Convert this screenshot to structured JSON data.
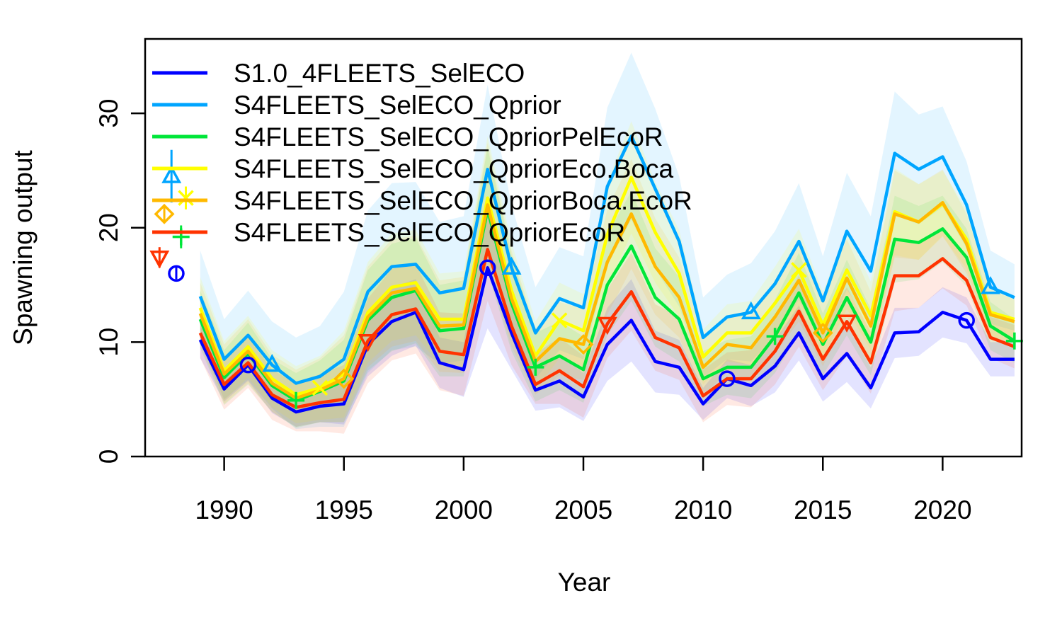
{
  "chart_data": {
    "type": "line",
    "xlabel": "Year",
    "ylabel": "Spawning output",
    "xlim": [
      1986.7,
      2023.3
    ],
    "ylim": [
      0,
      36.5
    ],
    "x_ticks": [
      1990,
      1995,
      2000,
      2005,
      2010,
      2015,
      2020
    ],
    "y_ticks": [
      0,
      10,
      20,
      30
    ],
    "grid": false,
    "legend_position": "top-left",
    "x": [
      1989,
      1990,
      1991,
      1992,
      1993,
      1994,
      1995,
      1996,
      1997,
      1998,
      1999,
      2000,
      2001,
      2002,
      2003,
      2004,
      2005,
      2006,
      2007,
      2008,
      2009,
      2010,
      2011,
      2012,
      2013,
      2014,
      2015,
      2016,
      2017,
      2018,
      2019,
      2020,
      2021,
      2022,
      2023
    ],
    "series": [
      {
        "name": "S1.0_4FLEETS_SelECO",
        "color": "#0000FF",
        "marker": "circle",
        "virgin": {
          "x": 1988.0,
          "y": 16.0,
          "lo": 15.5,
          "hi": 16.6
        },
        "values": [
          10.2,
          5.9,
          8.0,
          5.1,
          3.9,
          4.4,
          4.6,
          9.8,
          11.8,
          12.6,
          8.2,
          7.6,
          16.5,
          10.8,
          5.8,
          6.6,
          5.2,
          9.8,
          11.9,
          8.3,
          7.8,
          4.6,
          6.8,
          6.2,
          7.9,
          10.8,
          6.8,
          9.0,
          6.0,
          10.8,
          10.9,
          12.6,
          11.9,
          8.5,
          8.5
        ],
        "upper": [
          11.8,
          7.0,
          9.4,
          6.4,
          5.2,
          5.9,
          6.4,
          12.6,
          14.8,
          15.5,
          10.4,
          10.0,
          21.8,
          14.0,
          7.6,
          8.9,
          7.3,
          13.0,
          15.5,
          11.0,
          10.2,
          6.0,
          8.5,
          8.0,
          10.2,
          13.2,
          8.8,
          11.5,
          7.8,
          13.0,
          13.0,
          14.8,
          13.9,
          10.0,
          10.0
        ],
        "lower": [
          8.6,
          4.8,
          6.6,
          3.8,
          2.6,
          3.0,
          2.8,
          7.0,
          8.8,
          9.7,
          6.0,
          5.2,
          11.2,
          7.6,
          4.0,
          4.3,
          3.1,
          6.6,
          8.3,
          5.6,
          5.4,
          3.2,
          5.1,
          4.4,
          5.6,
          8.4,
          4.8,
          6.5,
          4.2,
          8.6,
          8.8,
          10.4,
          9.9,
          7.0,
          7.0
        ],
        "marker_x": [
          1991,
          2001,
          2011,
          2021
        ]
      },
      {
        "name": "S4FLEETS_SelECO_Qprior",
        "color": "#00A5FF",
        "marker": "triangle-up",
        "virgin": {
          "x": 1987.8,
          "y": 24.5,
          "lo": 22.2,
          "hi": 26.8
        },
        "values": [
          14.0,
          8.5,
          10.6,
          8.0,
          6.4,
          7.0,
          8.5,
          14.4,
          16.6,
          16.8,
          14.3,
          14.7,
          25.1,
          16.5,
          10.8,
          13.8,
          13.0,
          23.6,
          28.0,
          23.4,
          18.8,
          10.4,
          12.2,
          12.6,
          15.1,
          18.8,
          13.6,
          19.7,
          16.2,
          26.5,
          25.1,
          26.2,
          22.0,
          14.8,
          13.9
        ],
        "upper": [
          18.0,
          12.0,
          14.5,
          11.8,
          10.4,
          11.4,
          14.4,
          21.5,
          23.9,
          24.0,
          20.5,
          21.0,
          32.5,
          22.0,
          14.8,
          18.3,
          17.5,
          30.5,
          35.3,
          30.4,
          24.5,
          13.9,
          15.9,
          16.9,
          19.7,
          23.9,
          17.5,
          24.8,
          21.0,
          31.9,
          29.9,
          30.6,
          25.8,
          18.0,
          16.8
        ],
        "lower": [
          10.0,
          5.0,
          6.7,
          4.2,
          2.4,
          2.6,
          2.6,
          7.3,
          9.3,
          9.6,
          8.1,
          8.4,
          17.7,
          11.0,
          6.8,
          9.3,
          8.5,
          16.7,
          20.7,
          16.4,
          13.1,
          6.9,
          8.5,
          8.3,
          10.5,
          13.7,
          9.7,
          14.6,
          11.4,
          21.1,
          20.3,
          21.8,
          18.2,
          11.6,
          11.0
        ],
        "marker_x": [
          1992,
          2002,
          2012,
          2022
        ]
      },
      {
        "name": "S4FLEETS_SelECO_QpriorPelEcoR",
        "color": "#00E639",
        "marker": "plus",
        "virgin": {
          "x": 1988.2,
          "y": 19.2,
          "lo": 18.2,
          "hi": 20.2
        },
        "values": [
          12.0,
          6.9,
          9.0,
          6.2,
          4.9,
          5.7,
          6.6,
          11.9,
          13.9,
          14.5,
          11.0,
          11.2,
          21.6,
          13.4,
          7.8,
          8.8,
          7.6,
          15.0,
          18.4,
          13.9,
          12.0,
          6.8,
          7.8,
          7.8,
          10.5,
          14.3,
          9.8,
          13.9,
          10.0,
          19.0,
          18.7,
          19.9,
          17.4,
          11.4,
          10.1
        ],
        "upper": [
          14.5,
          9.3,
          11.7,
          8.5,
          7.3,
          8.4,
          10.2,
          16.3,
          18.6,
          19.1,
          15.0,
          15.4,
          27.0,
          17.6,
          10.8,
          11.8,
          10.5,
          19.4,
          23.2,
          18.2,
          15.7,
          9.2,
          10.2,
          10.5,
          13.7,
          17.8,
          12.5,
          17.2,
          12.9,
          22.8,
          21.9,
          22.8,
          19.9,
          13.5,
          12.0
        ],
        "lower": [
          9.5,
          4.5,
          6.3,
          3.9,
          2.5,
          3.0,
          3.0,
          7.5,
          9.2,
          9.9,
          7.0,
          7.0,
          16.2,
          9.2,
          4.8,
          5.8,
          4.7,
          10.6,
          13.6,
          9.6,
          8.3,
          4.4,
          5.4,
          5.1,
          7.3,
          10.8,
          7.1,
          10.6,
          7.1,
          15.2,
          15.5,
          17.0,
          14.9,
          9.3,
          8.2
        ],
        "marker_x": [
          1993,
          2003,
          2013,
          2023
        ]
      },
      {
        "name": "S4FLEETS_SelECO_QpriorEco.Boca",
        "color": "#FFFF00",
        "marker": "cross",
        "virgin": {
          "x": 1988.4,
          "y": 22.6,
          "lo": 21.6,
          "hi": 23.6
        },
        "values": [
          13.0,
          7.5,
          9.6,
          6.8,
          5.4,
          6.0,
          7.2,
          12.6,
          14.8,
          15.2,
          12.0,
          12.0,
          22.6,
          14.5,
          8.8,
          11.9,
          11.0,
          19.4,
          24.4,
          19.6,
          16.0,
          8.7,
          10.8,
          10.8,
          13.4,
          16.3,
          11.5,
          16.3,
          12.3,
          21.4,
          20.5,
          22.1,
          19.0,
          12.6,
          12.0
        ],
        "upper": [
          15.7,
          10.1,
          12.3,
          9.3,
          7.9,
          8.8,
          11.0,
          17.0,
          19.5,
          19.8,
          16.0,
          16.2,
          28.0,
          18.7,
          11.8,
          15.2,
          14.2,
          24.0,
          29.3,
          24.0,
          19.8,
          11.1,
          13.3,
          13.6,
          16.6,
          19.9,
          14.4,
          19.7,
          15.3,
          25.2,
          23.8,
          25.0,
          21.6,
          14.8,
          13.9
        ],
        "lower": [
          10.3,
          4.9,
          6.9,
          4.3,
          2.9,
          3.2,
          3.4,
          8.2,
          10.1,
          10.6,
          8.0,
          7.8,
          17.2,
          10.3,
          5.8,
          8.6,
          7.8,
          14.8,
          19.5,
          15.2,
          12.2,
          6.3,
          8.3,
          8.0,
          10.2,
          12.7,
          8.6,
          12.9,
          9.3,
          17.6,
          17.2,
          19.2,
          16.4,
          10.4,
          10.1
        ],
        "marker_x": [
          1994,
          2004,
          2014
        ]
      },
      {
        "name": "S4FLEETS_SelECO_QpriorBoca.EcoR",
        "color": "#FFB900",
        "marker": "diamond",
        "virgin": {
          "x": 1987.5,
          "y": 21.2,
          "lo": 20.4,
          "hi": 22.0
        },
        "values": [
          12.5,
          7.2,
          9.2,
          6.4,
          5.1,
          5.8,
          6.8,
          12.2,
          14.3,
          14.7,
          11.4,
          11.5,
          22.0,
          13.8,
          8.3,
          10.3,
          9.8,
          17.0,
          21.2,
          16.6,
          13.9,
          7.8,
          9.8,
          9.5,
          12.2,
          15.4,
          10.8,
          15.6,
          11.4,
          21.2,
          20.5,
          22.2,
          18.6,
          12.4,
          11.8
        ],
        "upper": [
          15.2,
          9.8,
          12.0,
          8.9,
          7.6,
          8.6,
          10.6,
          16.6,
          19.0,
          19.3,
          15.4,
          15.7,
          27.4,
          18.0,
          11.2,
          13.5,
          12.9,
          21.6,
          26.0,
          20.8,
          17.4,
          10.2,
          12.3,
          12.3,
          15.4,
          19.0,
          13.7,
          19.0,
          14.4,
          25.0,
          23.8,
          25.1,
          21.2,
          14.6,
          13.7
        ],
        "lower": [
          9.8,
          4.6,
          6.4,
          3.9,
          2.6,
          3.0,
          3.0,
          7.8,
          9.6,
          10.1,
          7.4,
          7.3,
          16.6,
          9.6,
          5.4,
          7.1,
          6.7,
          12.4,
          16.4,
          12.4,
          10.4,
          5.4,
          7.3,
          6.7,
          9.0,
          11.8,
          7.9,
          12.2,
          8.4,
          17.4,
          17.2,
          19.3,
          16.0,
          10.2,
          9.9
        ],
        "marker_x": [
          1995,
          2005,
          2015
        ]
      },
      {
        "name": "S4FLEETS_SelECO_QpriorEcoR",
        "color": "#FF3300",
        "marker": "triangle-down",
        "virgin": {
          "x": 1987.3,
          "y": 17.4,
          "lo": 16.5,
          "hi": 18.3
        },
        "values": [
          10.8,
          6.3,
          8.2,
          5.4,
          4.3,
          4.7,
          5.0,
          10.1,
          12.4,
          12.9,
          9.2,
          8.9,
          18.1,
          11.4,
          6.3,
          7.5,
          6.1,
          11.6,
          14.4,
          10.4,
          9.5,
          5.3,
          6.8,
          6.8,
          9.2,
          12.7,
          8.5,
          11.8,
          8.2,
          15.8,
          15.8,
          17.3,
          15.4,
          10.4,
          9.6
        ],
        "upper": [
          13.0,
          8.5,
          10.4,
          7.6,
          6.4,
          7.2,
          8.0,
          13.8,
          16.4,
          16.8,
          12.6,
          12.5,
          22.6,
          14.8,
          9.0,
          10.4,
          8.8,
          14.6,
          17.8,
          13.3,
          12.3,
          7.6,
          9.1,
          9.3,
          12.1,
          15.8,
          11.2,
          14.8,
          10.9,
          18.9,
          18.6,
          19.9,
          17.6,
          12.2,
          11.5
        ],
        "lower": [
          8.6,
          4.1,
          6.0,
          3.2,
          2.2,
          2.2,
          2.0,
          6.4,
          8.4,
          9.0,
          5.8,
          5.3,
          13.6,
          8.0,
          4.6,
          4.6,
          3.4,
          8.6,
          11.0,
          7.5,
          6.7,
          3.0,
          4.5,
          4.3,
          6.3,
          9.6,
          5.8,
          8.8,
          5.5,
          12.7,
          13.0,
          14.7,
          13.2,
          8.6,
          7.7
        ],
        "marker_x": [
          1996,
          2006,
          2016
        ]
      }
    ]
  }
}
